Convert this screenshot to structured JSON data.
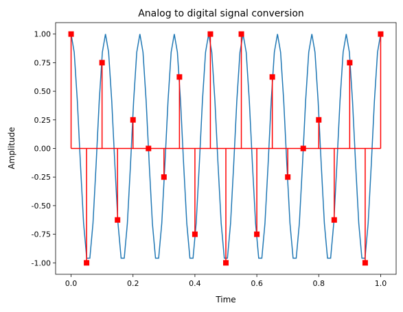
{
  "chart_data": {
    "type": "line",
    "title": "Analog to digital signal conversion",
    "xlabel": "Time",
    "ylabel": "Amplitude",
    "xlim": [
      -0.05,
      1.05
    ],
    "ylim": [
      -1.1,
      1.1
    ],
    "xticks": [
      "0.0",
      "0.2",
      "0.4",
      "0.6",
      "0.8",
      "1.0"
    ],
    "yticks": [
      "-1.00",
      "-0.75",
      "-0.50",
      "-0.25",
      "0.00",
      "0.25",
      "0.50",
      "0.75",
      "1.00"
    ],
    "grid": false,
    "series": [
      {
        "kind": "analog-line",
        "color": "#1f77b4",
        "frequency_hz": 9,
        "amplitude": 1,
        "x_start": 0,
        "x_end": 1,
        "samples": 100
      },
      {
        "kind": "sampled-stem",
        "color": "#ff0000",
        "marker": "square",
        "x": [
          0.0,
          0.05,
          0.1,
          0.15,
          0.2,
          0.25,
          0.3,
          0.35,
          0.4,
          0.45,
          0.5,
          0.55,
          0.6,
          0.65,
          0.7,
          0.75,
          0.8,
          0.85,
          0.9,
          0.95,
          1.0
        ],
        "y": [
          1.0,
          -1.0,
          0.75,
          -0.625,
          0.25,
          0.0,
          -0.25,
          0.625,
          -0.75,
          1.0,
          -1.0,
          1.0,
          -0.75,
          0.625,
          -0.25,
          0.0,
          0.25,
          -0.625,
          0.75,
          -1.0,
          1.0
        ]
      }
    ]
  }
}
